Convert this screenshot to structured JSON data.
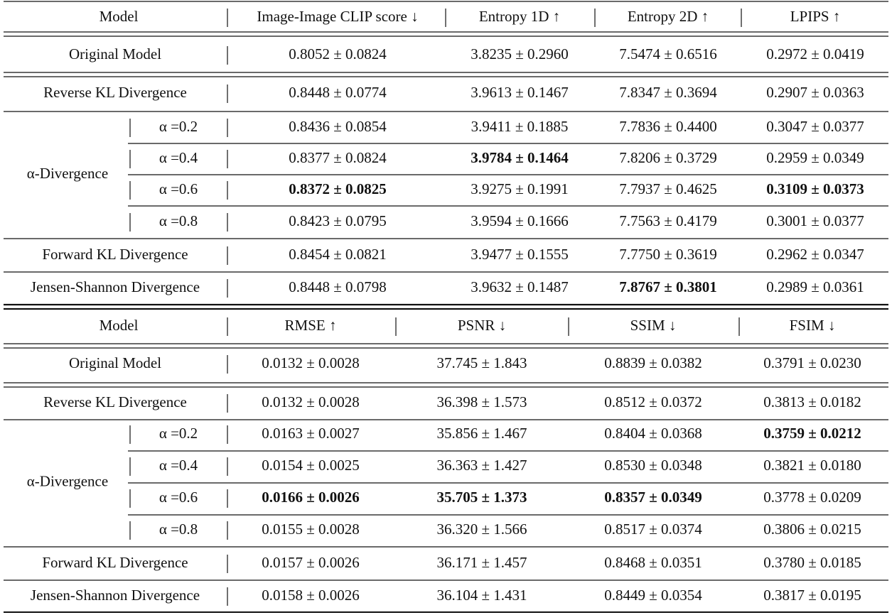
{
  "tables": [
    {
      "header": [
        "Model",
        "Image-Image CLIP score ↓",
        "Entropy 1D ↑",
        "Entropy 2D ↑",
        "LPIPS ↑"
      ],
      "rows": [
        {
          "model": "Original Model",
          "cells": [
            "0.8052 ± 0.0824",
            "3.8235 ± 0.2960",
            "7.5474 ± 0.6516",
            "0.2972 ± 0.0419"
          ]
        },
        {
          "model": "Reverse KL Divergence",
          "cells": [
            "0.8448 ± 0.0774",
            "3.9613 ± 0.1467",
            "7.8347 ± 0.3694",
            "0.2907 ± 0.0363"
          ]
        },
        {
          "group": "α-Divergence",
          "subrows": [
            {
              "alpha": "α =0.2",
              "cells": [
                "0.8436 ± 0.0854",
                "3.9411 ± 0.1885",
                "7.7836 ± 0.4400",
                "0.3047 ± 0.0377"
              ]
            },
            {
              "alpha": "α =0.4",
              "cells": [
                "0.8377 ± 0.0824",
                "3.9784 ± 0.1464",
                "7.8206 ± 0.3729",
                "0.2959 ± 0.0349"
              ],
              "bold": [
                1
              ]
            },
            {
              "alpha": "α =0.6",
              "cells": [
                "0.8372 ± 0.0825",
                "3.9275 ± 0.1991",
                "7.7937 ± 0.4625",
                "0.3109 ± 0.0373"
              ],
              "bold": [
                0,
                3
              ]
            },
            {
              "alpha": "α =0.8",
              "cells": [
                "0.8423 ± 0.0795",
                "3.9594 ± 0.1666",
                "7.7563 ± 0.4179",
                "0.3001 ± 0.0377"
              ]
            }
          ]
        },
        {
          "model": "Forward KL Divergence",
          "cells": [
            "0.8454 ± 0.0821",
            "3.9477 ± 0.1555",
            "7.7750 ± 0.3619",
            "0.2962 ± 0.0347"
          ]
        },
        {
          "model": "Jensen-Shannon Divergence",
          "cells": [
            "0.8448 ± 0.0798",
            "3.9632 ± 0.1487",
            "7.8767 ± 0.3801",
            "0.2989 ± 0.0361"
          ],
          "bold": [
            2
          ]
        }
      ]
    },
    {
      "header": [
        "Model",
        "RMSE ↑",
        "PSNR ↓",
        "SSIM ↓",
        "FSIM ↓"
      ],
      "rows": [
        {
          "model": "Original Model",
          "cells": [
            "0.0132 ± 0.0028",
            "37.745 ± 1.843",
            "0.8839 ± 0.0382",
            "0.3791 ± 0.0230"
          ]
        },
        {
          "model": "Reverse KL Divergence",
          "cells": [
            "0.0132 ± 0.0028",
            "36.398 ± 1.573",
            "0.8512 ± 0.0372",
            "0.3813 ± 0.0182"
          ]
        },
        {
          "group": "α-Divergence",
          "subrows": [
            {
              "alpha": "α =0.2",
              "cells": [
                "0.0163 ± 0.0027",
                "35.856 ± 1.467",
                "0.8404 ± 0.0368",
                "0.3759 ± 0.0212"
              ],
              "bold": [
                3
              ]
            },
            {
              "alpha": "α =0.4",
              "cells": [
                "0.0154 ± 0.0025",
                "36.363 ± 1.427",
                "0.8530 ± 0.0348",
                "0.3821 ± 0.0180"
              ]
            },
            {
              "alpha": "α =0.6",
              "cells": [
                "0.0166 ± 0.0026",
                "35.705 ± 1.373",
                "0.8357 ± 0.0349",
                "0.3778 ± 0.0209"
              ],
              "bold": [
                0,
                1,
                2
              ]
            },
            {
              "alpha": "α =0.8",
              "cells": [
                "0.0155 ± 0.0028",
                "36.320 ± 1.566",
                "0.8517 ± 0.0374",
                "0.3806 ± 0.0215"
              ]
            }
          ]
        },
        {
          "model": "Forward KL Divergence",
          "cells": [
            "0.0157 ± 0.0026",
            "36.171 ± 1.457",
            "0.8468 ± 0.0351",
            "0.3780 ± 0.0185"
          ]
        },
        {
          "model": "Jensen-Shannon Divergence",
          "cells": [
            "0.0158 ± 0.0026",
            "36.104 ± 1.431",
            "0.8449 ± 0.0354",
            "0.3817 ± 0.0195"
          ]
        }
      ]
    }
  ]
}
